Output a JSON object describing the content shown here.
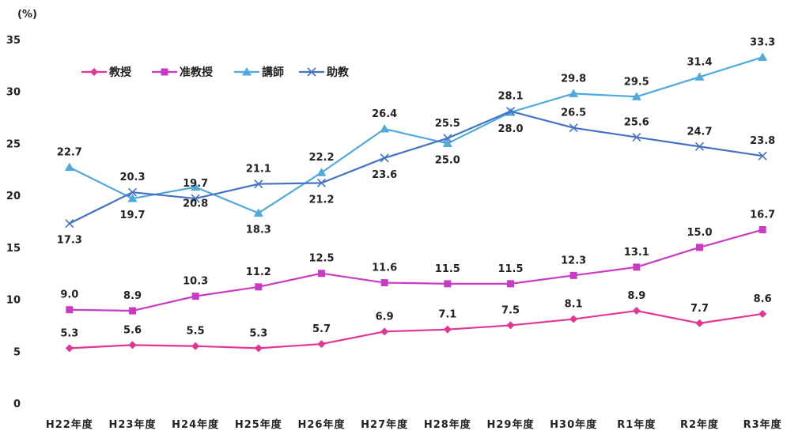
{
  "chart_data": {
    "type": "line",
    "y_unit_label": "(%)",
    "ylim": [
      0,
      35
    ],
    "y_ticks": [
      "0",
      "5",
      "10",
      "15",
      "20",
      "25",
      "30",
      "35"
    ],
    "grid": false,
    "legend_position": "top-left",
    "categories": [
      "H22年度",
      "H23年度",
      "H24年度",
      "H25年度",
      "H26年度",
      "H27年度",
      "H28年度",
      "H29年度",
      "H30年度",
      "R1年度",
      "R2年度",
      "R3年度"
    ],
    "series": [
      {
        "name": "教授",
        "color": "#e23594",
        "marker": "diamond",
        "values": [
          5.3,
          5.6,
          5.5,
          5.3,
          5.7,
          6.9,
          7.1,
          7.5,
          8.1,
          8.9,
          7.7,
          8.6
        ],
        "labels": [
          "5.3",
          "5.6",
          "5.5",
          "5.3",
          "5.7",
          "6.9",
          "7.1",
          "7.5",
          "8.1",
          "8.9",
          "7.7",
          "8.6"
        ]
      },
      {
        "name": "准教授",
        "color": "#c93bc3",
        "marker": "square",
        "values": [
          9.0,
          8.9,
          10.3,
          11.2,
          12.5,
          11.6,
          11.5,
          11.5,
          12.3,
          13.1,
          15.0,
          16.7
        ],
        "labels": [
          "9.0",
          "8.9",
          "10.3",
          "11.2",
          "12.5",
          "11.6",
          "11.5",
          "11.5",
          "12.3",
          "13.1",
          "15.0",
          "16.7"
        ]
      },
      {
        "name": "講師",
        "color": "#4fa9dc",
        "marker": "triangle",
        "values": [
          22.7,
          19.7,
          20.8,
          18.3,
          22.2,
          26.4,
          25.0,
          28.0,
          29.8,
          29.5,
          31.4,
          33.3
        ],
        "labels": [
          "22.7",
          "19.7",
          "20.8",
          "18.3",
          "22.2",
          "26.4",
          "25.0",
          "28.0",
          "29.8",
          "29.5",
          "31.4",
          "33.3"
        ]
      },
      {
        "name": "助教",
        "color": "#4472c4",
        "marker": "x",
        "values": [
          17.3,
          20.3,
          19.7,
          21.1,
          21.2,
          23.6,
          25.5,
          28.1,
          26.5,
          25.6,
          24.7,
          23.8
        ],
        "labels": [
          "17.3",
          "20.3",
          "19.7",
          "21.1",
          "21.2",
          "23.6",
          "25.5",
          "28.1",
          "26.5",
          "25.6",
          "24.7",
          "23.8"
        ]
      }
    ]
  }
}
